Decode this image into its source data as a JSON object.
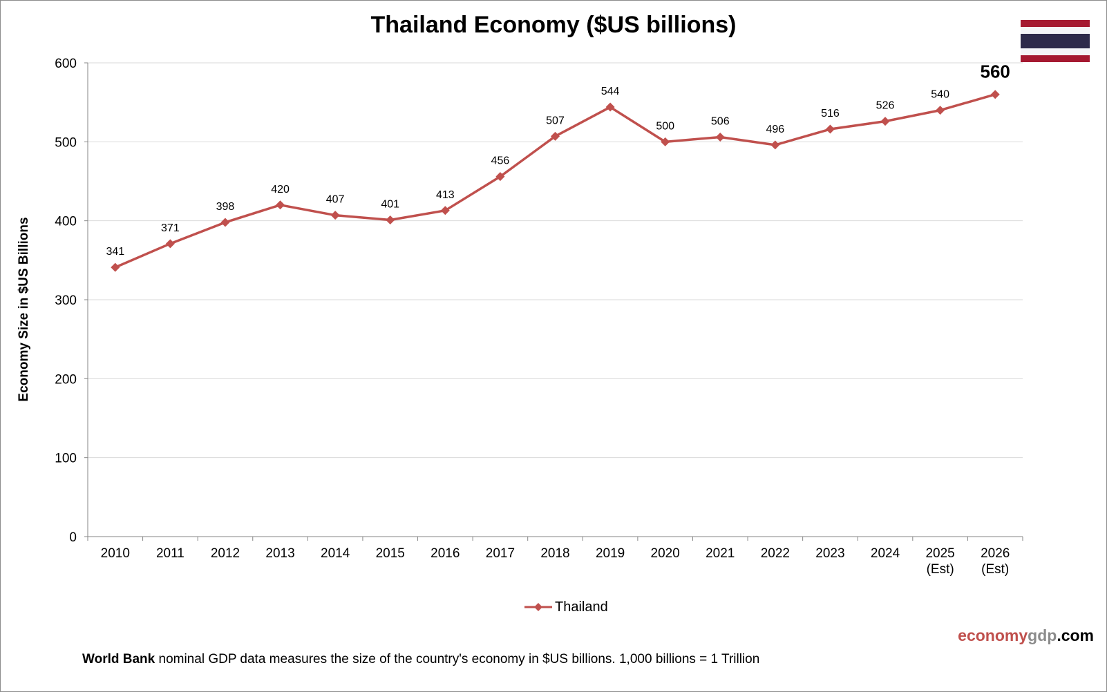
{
  "chart_data": {
    "type": "line",
    "title": "Thailand Economy ($US billions)",
    "ylabel": "Economy Size in $US Billions",
    "xlabel": "",
    "ylim": [
      0,
      600
    ],
    "yticks": [
      0,
      100,
      200,
      300,
      400,
      500,
      600
    ],
    "grid": true,
    "legend_position": "bottom",
    "categories": [
      [
        "2010"
      ],
      [
        "2011"
      ],
      [
        "2012"
      ],
      [
        "2013"
      ],
      [
        "2014"
      ],
      [
        "2015"
      ],
      [
        "2016"
      ],
      [
        "2017"
      ],
      [
        "2018"
      ],
      [
        "2019"
      ],
      [
        "2020"
      ],
      [
        "2021"
      ],
      [
        "2022"
      ],
      [
        "2023"
      ],
      [
        "2024"
      ],
      [
        "2025",
        "(Est)"
      ],
      [
        "2026",
        "(Est)"
      ]
    ],
    "series": [
      {
        "name": "Thailand",
        "color": "#c0504d",
        "marker": "diamond",
        "values": [
          341,
          371,
          398,
          420,
          407,
          401,
          413,
          456,
          507,
          544,
          500,
          506,
          496,
          516,
          526,
          540,
          560
        ],
        "data_labels": [
          "341",
          "371",
          "398",
          "420",
          "407",
          "401",
          "413",
          "456",
          "507",
          "544",
          "500",
          "506",
          "496",
          "516",
          "526",
          "540",
          "560"
        ]
      }
    ],
    "highlighted_label_index": 16
  },
  "flag": {
    "name": "thailand-flag-icon",
    "colors": [
      "#a51931",
      "#f4f5f8",
      "#2d2a4a",
      "#f4f5f8",
      "#a51931"
    ]
  },
  "branding": {
    "part1": "economy",
    "part2": "gdp",
    "part3": ".com"
  },
  "footnote": {
    "bold": "World Bank",
    "text": " nominal GDP data  measures the size of the country's economy in $US billions.  1,000 billions = 1 Trillion"
  }
}
